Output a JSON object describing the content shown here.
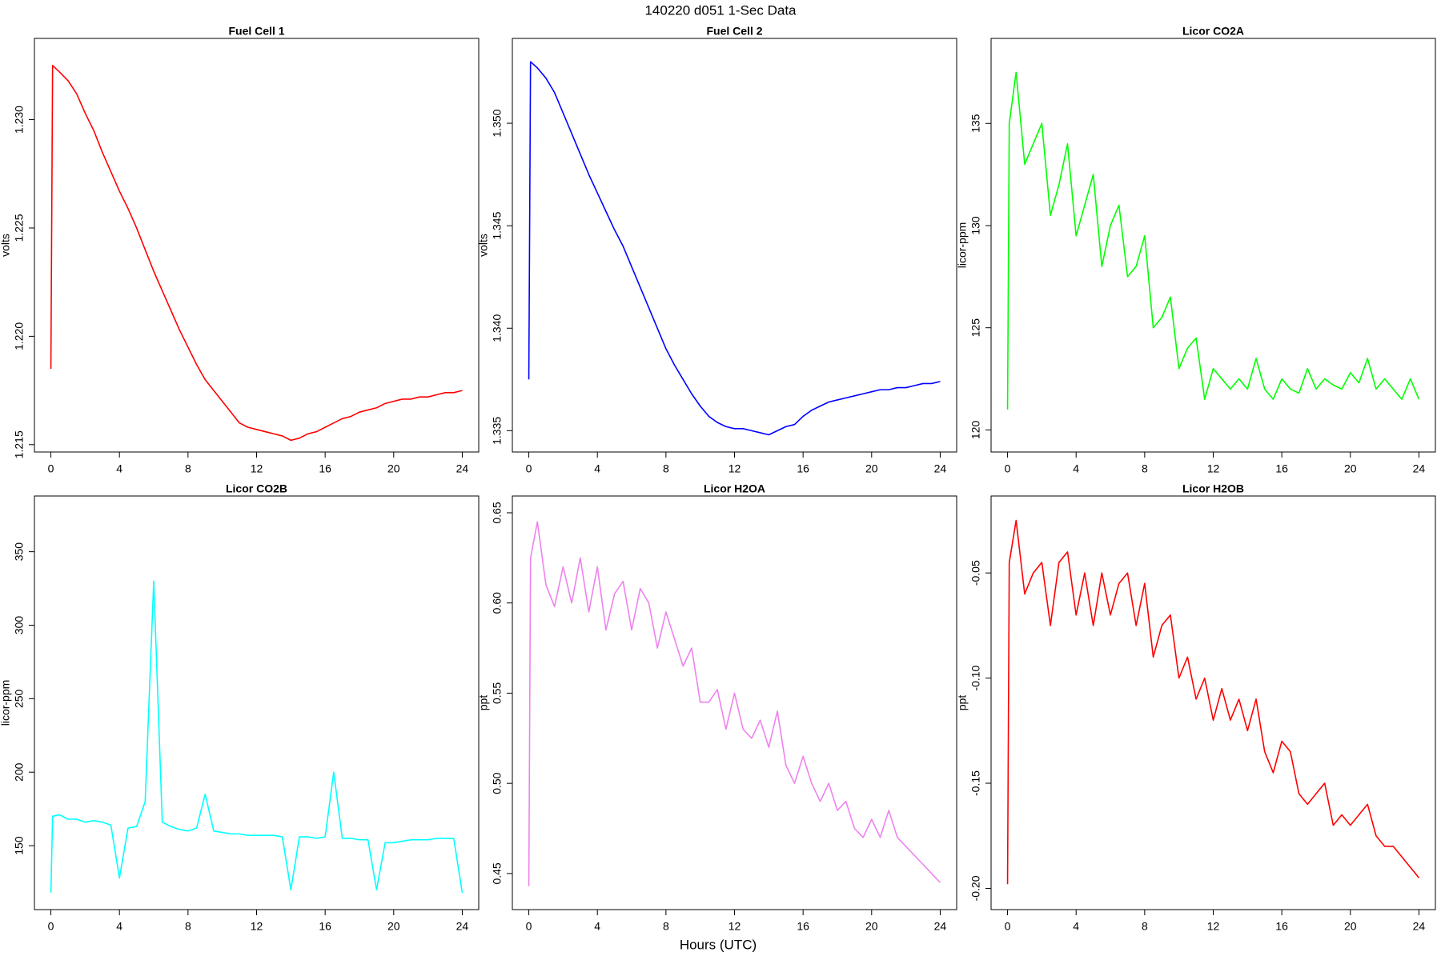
{
  "title": "140220   d051   1-Sec Data",
  "x_label": "Hours (UTC)",
  "chart_data": [
    {
      "type": "line",
      "title": "Fuel Cell 1",
      "y_label": "volts",
      "color": "#ff0000",
      "x": [
        0,
        0.1,
        0.5,
        1,
        1.5,
        2,
        2.5,
        3,
        3.5,
        4,
        4.5,
        5,
        5.5,
        6,
        6.5,
        7,
        7.5,
        8,
        8.5,
        9,
        9.5,
        10,
        10.5,
        11,
        11.5,
        12,
        12.5,
        13,
        13.5,
        14,
        14.5,
        15,
        15.5,
        16,
        16.5,
        17,
        17.5,
        18,
        18.5,
        19,
        19.5,
        20,
        20.5,
        21,
        21.5,
        22,
        22.5,
        23,
        23.5,
        24
      ],
      "values": [
        1.2185,
        1.2325,
        1.2322,
        1.2318,
        1.2312,
        1.2303,
        1.2295,
        1.2285,
        1.2276,
        1.2267,
        1.2259,
        1.225,
        1.224,
        1.223,
        1.2221,
        1.2212,
        1.2203,
        1.2195,
        1.2187,
        1.218,
        1.2175,
        1.217,
        1.2165,
        1.216,
        1.2158,
        1.2157,
        1.2156,
        1.2155,
        1.2154,
        1.2152,
        1.2153,
        1.2155,
        1.2156,
        1.2158,
        1.216,
        1.2162,
        1.2163,
        1.2165,
        1.2166,
        1.2167,
        1.2169,
        1.217,
        1.2171,
        1.2171,
        1.2172,
        1.2172,
        1.2173,
        1.2174,
        1.2174,
        1.2175
      ],
      "xlim": [
        -0.96,
        24.96
      ],
      "xticks": [
        0,
        4,
        8,
        12,
        16,
        20,
        24
      ],
      "ylim": [
        1.21466,
        1.23375
      ],
      "yticks": [
        1.215,
        {
          "value": 1.22,
          "label": "1.220"
        },
        1.225,
        {
          "value": 1.23,
          "label": "1.230"
        }
      ]
    },
    {
      "type": "line",
      "title": "Fuel Cell 2",
      "y_label": "volts",
      "color": "#0000ff",
      "x": [
        0,
        0.1,
        0.5,
        1,
        1.5,
        2,
        2.5,
        3,
        3.5,
        4,
        4.5,
        5,
        5.5,
        6,
        6.5,
        7,
        7.5,
        8,
        8.5,
        9,
        9.5,
        10,
        10.5,
        11,
        11.5,
        12,
        12.5,
        13,
        13.5,
        14,
        14.5,
        15,
        15.5,
        16,
        16.5,
        17,
        17.5,
        18,
        18.5,
        19,
        19.5,
        20,
        20.5,
        21,
        21.5,
        22,
        22.5,
        23,
        23.5,
        24
      ],
      "values": [
        1.3375,
        1.353,
        1.3527,
        1.3522,
        1.3515,
        1.3505,
        1.3495,
        1.3485,
        1.3475,
        1.3466,
        1.3457,
        1.3448,
        1.344,
        1.343,
        1.342,
        1.341,
        1.34,
        1.339,
        1.3382,
        1.3375,
        1.3368,
        1.3362,
        1.3357,
        1.3354,
        1.3352,
        1.3351,
        1.3351,
        1.335,
        1.3349,
        1.3348,
        1.335,
        1.3352,
        1.3353,
        1.3357,
        1.336,
        1.3362,
        1.3364,
        1.3365,
        1.3366,
        1.3367,
        1.3368,
        1.3369,
        1.337,
        1.337,
        1.3371,
        1.3371,
        1.3372,
        1.3373,
        1.3373,
        1.3374
      ],
      "xlim": [
        -0.96,
        24.96
      ],
      "xticks": [
        0,
        4,
        8,
        12,
        16,
        20,
        24
      ],
      "ylim": [
        1.33396,
        1.35414
      ],
      "yticks": [
        1.335,
        {
          "value": 1.34,
          "label": "1.340"
        },
        1.345,
        {
          "value": 1.35,
          "label": "1.350"
        }
      ]
    },
    {
      "type": "line",
      "title": "Licor CO2A",
      "y_label": "licor-ppm",
      "color": "#00ff00",
      "x": [
        0,
        0.1,
        0.5,
        1,
        1.5,
        2,
        2.5,
        3,
        3.5,
        4,
        4.5,
        5,
        5.5,
        6,
        6.5,
        7,
        7.5,
        8,
        8.5,
        9,
        9.5,
        10,
        10.5,
        11,
        11.5,
        12,
        12.5,
        13,
        13.5,
        14,
        14.5,
        15,
        15.5,
        16,
        16.5,
        17,
        17.5,
        18,
        18.5,
        19,
        19.5,
        20,
        20.5,
        21,
        21.5,
        22,
        22.5,
        23,
        23.5,
        24
      ],
      "values": [
        121,
        135,
        137.5,
        133,
        134,
        135,
        130.5,
        132,
        134,
        129.5,
        131,
        132.5,
        128,
        130,
        131,
        127.5,
        128,
        129.5,
        125,
        125.5,
        126.5,
        123,
        124,
        124.5,
        121.5,
        123,
        122.5,
        122,
        122.5,
        122,
        123.5,
        122,
        121.5,
        122.5,
        122,
        121.8,
        123,
        122,
        122.5,
        122.2,
        122,
        122.8,
        122.3,
        123.5,
        122,
        122.5,
        122,
        121.5,
        122.5,
        121.5
      ],
      "xlim": [
        -0.96,
        24.96
      ],
      "xticks": [
        0,
        4,
        8,
        12,
        16,
        20,
        24
      ],
      "ylim": [
        118.92,
        139.16
      ],
      "yticks": [
        120,
        125,
        130,
        135
      ]
    },
    {
      "type": "line",
      "title": "Licor CO2B",
      "y_label": "licor-ppm",
      "color": "#00ffff",
      "x": [
        0,
        0.1,
        0.5,
        1,
        1.5,
        2,
        2.5,
        3,
        3.5,
        4,
        4.5,
        5,
        5.5,
        6,
        6.5,
        7,
        7.5,
        8,
        8.5,
        9,
        9.5,
        10,
        10.5,
        11,
        11.5,
        12,
        12.5,
        13,
        13.5,
        14,
        14.5,
        15,
        15.5,
        16,
        16.5,
        17,
        17.5,
        18,
        18.5,
        19,
        19.5,
        20,
        20.5,
        21,
        21.5,
        22,
        22.5,
        23,
        23.5,
        24
      ],
      "values": [
        118,
        170,
        171,
        168,
        168,
        166,
        167,
        166,
        164,
        128,
        162,
        163,
        180,
        330,
        166,
        163,
        161,
        160,
        162,
        185,
        160,
        159,
        158,
        158,
        157,
        157,
        157,
        157,
        156,
        120,
        156,
        156,
        155,
        156,
        200,
        155,
        155,
        154,
        154,
        120,
        152,
        152,
        153,
        154,
        154,
        154,
        155,
        155,
        155,
        118
      ],
      "xlim": [
        -0.96,
        24.96
      ],
      "xticks": [
        0,
        4,
        8,
        12,
        16,
        20,
        24
      ],
      "ylim": [
        106.5,
        387.9
      ],
      "yticks": [
        150,
        200,
        250,
        300,
        350
      ]
    },
    {
      "type": "line",
      "title": "Licor H2OA",
      "y_label": "ppt",
      "color": "#ee82ee",
      "x": [
        0,
        0.1,
        0.5,
        1,
        1.5,
        2,
        2.5,
        3,
        3.5,
        4,
        4.5,
        5,
        5.5,
        6,
        6.5,
        7,
        7.5,
        8,
        8.5,
        9,
        9.5,
        10,
        10.5,
        11,
        11.5,
        12,
        12.5,
        13,
        13.5,
        14,
        14.5,
        15,
        15.5,
        16,
        16.5,
        17,
        17.5,
        18,
        18.5,
        19,
        19.5,
        20,
        20.5,
        21,
        21.5,
        22,
        22.5,
        23,
        23.5,
        24
      ],
      "values": [
        0.443,
        0.625,
        0.645,
        0.61,
        0.598,
        0.62,
        0.6,
        0.625,
        0.595,
        0.62,
        0.585,
        0.605,
        0.612,
        0.585,
        0.608,
        0.6,
        0.575,
        0.595,
        0.58,
        0.565,
        0.575,
        0.545,
        0.545,
        0.552,
        0.53,
        0.55,
        0.53,
        0.525,
        0.535,
        0.52,
        0.54,
        0.51,
        0.5,
        0.515,
        0.5,
        0.49,
        0.5,
        0.485,
        0.49,
        0.475,
        0.47,
        0.48,
        0.47,
        0.485,
        0.47,
        0.465,
        0.46,
        0.455,
        0.45,
        0.445
      ],
      "xlim": [
        -0.96,
        24.96
      ],
      "xticks": [
        0,
        4,
        8,
        12,
        16,
        20,
        24
      ],
      "ylim": [
        0.43,
        0.6593
      ],
      "yticks": [
        0.45,
        {
          "value": 0.5,
          "label": "0.50"
        },
        0.55,
        {
          "value": 0.6,
          "label": "0.60"
        },
        0.65
      ]
    },
    {
      "type": "line",
      "title": "Licor H2OB",
      "y_label": "ppt",
      "color": "#ff0000",
      "x": [
        0,
        0.1,
        0.5,
        1,
        1.5,
        2,
        2.5,
        3,
        3.5,
        4,
        4.5,
        5,
        5.5,
        6,
        6.5,
        7,
        7.5,
        8,
        8.5,
        9,
        9.5,
        10,
        10.5,
        11,
        11.5,
        12,
        12.5,
        13,
        13.5,
        14,
        14.5,
        15,
        15.5,
        16,
        16.5,
        17,
        17.5,
        18,
        18.5,
        19,
        19.5,
        20,
        20.5,
        21,
        21.5,
        22,
        22.5,
        23,
        23.5,
        24
      ],
      "values": [
        -0.198,
        -0.045,
        -0.025,
        -0.06,
        -0.05,
        -0.045,
        -0.075,
        -0.045,
        -0.04,
        -0.07,
        -0.05,
        -0.075,
        -0.05,
        -0.07,
        -0.055,
        -0.05,
        -0.075,
        -0.055,
        -0.09,
        -0.075,
        -0.07,
        -0.1,
        -0.09,
        -0.11,
        -0.1,
        -0.12,
        -0.105,
        -0.12,
        -0.11,
        -0.125,
        -0.11,
        -0.135,
        -0.145,
        -0.13,
        -0.135,
        -0.155,
        -0.16,
        -0.155,
        -0.15,
        -0.17,
        -0.165,
        -0.17,
        -0.165,
        -0.16,
        -0.175,
        -0.18,
        -0.18,
        -0.185,
        -0.19,
        -0.195
      ],
      "xlim": [
        -0.96,
        24.96
      ],
      "xticks": [
        0,
        4,
        8,
        12,
        16,
        20,
        24
      ],
      "ylim": [
        -0.2101,
        -0.0134
      ],
      "yticks": [
        {
          "value": -0.2,
          "label": "-0.20"
        },
        -0.15,
        {
          "value": -0.1,
          "label": "-0.10"
        },
        -0.05
      ]
    }
  ]
}
